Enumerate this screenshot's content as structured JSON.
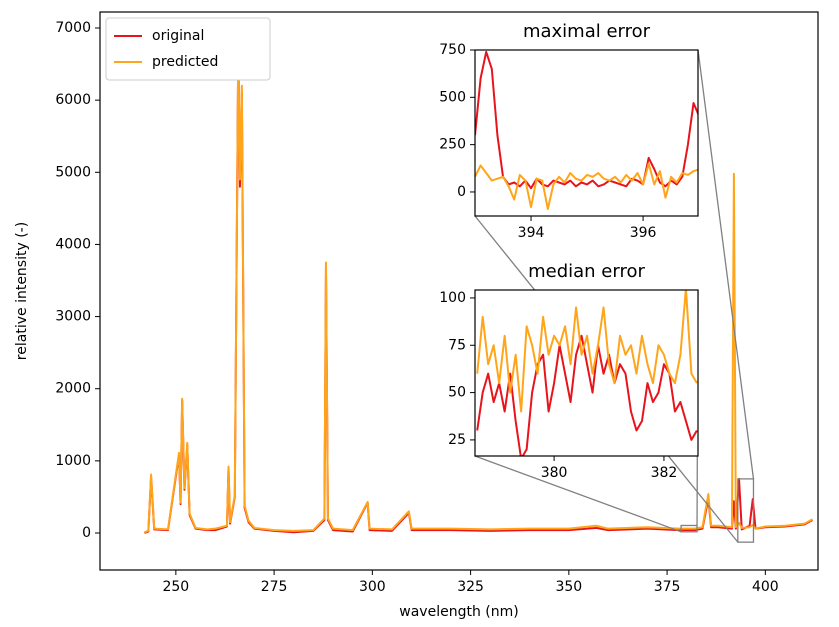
{
  "chart_data": [
    {
      "type": "line",
      "xlabel": "wavelength (nm)",
      "ylabel": "relative intensity (-)",
      "x": [
        242,
        243,
        243.7,
        244.5,
        248,
        250.8,
        251.2,
        251.6,
        252.2,
        252.9,
        253.5,
        255,
        258,
        260,
        263,
        263.4,
        263.8,
        265,
        265.9,
        266.3,
        266.8,
        267.5,
        268.5,
        270,
        275,
        280,
        285,
        287.8,
        288.2,
        288.7,
        290,
        295,
        298.8,
        299.3,
        305,
        309.3,
        310,
        320,
        330,
        340,
        350,
        357,
        360,
        370,
        378,
        382,
        384,
        385.5,
        386.2,
        388,
        391.5,
        392,
        392.5,
        393.3,
        394,
        396,
        396.8,
        397.5,
        400,
        405,
        410,
        412
      ],
      "series": [
        {
          "name": "original",
          "color": "#e8141c",
          "values": [
            0,
            20,
            780,
            50,
            40,
            1080,
            400,
            1840,
            600,
            1220,
            250,
            60,
            40,
            40,
            90,
            900,
            130,
            500,
            6850,
            4800,
            6100,
            350,
            150,
            60,
            30,
            10,
            30,
            180,
            3700,
            180,
            40,
            20,
            420,
            40,
            30,
            280,
            40,
            40,
            30,
            40,
            40,
            70,
            40,
            60,
            40,
            40,
            60,
            480,
            80,
            80,
            60,
            440,
            60,
            750,
            50,
            100,
            470,
            60,
            80,
            90,
            120,
            180
          ]
        },
        {
          "name": "predicted",
          "color": "#ffa51a",
          "values": [
            10,
            30,
            810,
            60,
            50,
            1110,
            420,
            1860,
            620,
            1250,
            270,
            70,
            50,
            60,
            100,
            920,
            150,
            520,
            6800,
            4900,
            6200,
            380,
            170,
            70,
            40,
            30,
            40,
            200,
            3750,
            200,
            60,
            40,
            430,
            60,
            50,
            300,
            60,
            60,
            50,
            60,
            60,
            100,
            60,
            80,
            60,
            60,
            80,
            540,
            100,
            100,
            80,
            4980,
            80,
            140,
            70,
            80,
            110,
            60,
            90,
            100,
            130,
            190
          ]
        }
      ],
      "xlim": [
        230.7,
        413.4
      ],
      "ylim": [
        -513,
        7222
      ],
      "xticks": [
        250,
        275,
        300,
        325,
        350,
        375,
        400
      ],
      "yticks": [
        0,
        1000,
        2000,
        3000,
        4000,
        5000,
        6000,
        7000
      ],
      "legend": "upper left"
    },
    {
      "type": "line",
      "title": "maximal error",
      "x": [
        393.0,
        393.1,
        393.2,
        393.3,
        393.4,
        393.5,
        393.6,
        393.7,
        393.8,
        393.9,
        394.0,
        394.1,
        394.2,
        394.3,
        394.4,
        394.5,
        394.6,
        394.7,
        394.8,
        394.9,
        395.0,
        395.1,
        395.2,
        395.3,
        395.4,
        395.5,
        395.6,
        395.7,
        395.8,
        395.9,
        396.0,
        396.1,
        396.2,
        396.3,
        396.4,
        396.5,
        396.6,
        396.7,
        396.8,
        396.9,
        397.0
      ],
      "series": [
        {
          "color": "#e8141c",
          "values": [
            300,
            600,
            740,
            650,
            300,
            80,
            40,
            50,
            30,
            60,
            20,
            70,
            40,
            30,
            60,
            50,
            40,
            60,
            30,
            50,
            40,
            60,
            30,
            40,
            60,
            50,
            40,
            30,
            70,
            60,
            40,
            180,
            120,
            50,
            30,
            60,
            40,
            80,
            250,
            470,
            400
          ]
        },
        {
          "color": "#ffa51a",
          "values": [
            80,
            140,
            100,
            60,
            70,
            80,
            30,
            -40,
            90,
            60,
            -80,
            70,
            60,
            -90,
            40,
            80,
            50,
            100,
            70,
            60,
            90,
            80,
            100,
            70,
            60,
            80,
            50,
            90,
            60,
            100,
            40,
            150,
            40,
            110,
            -30,
            80,
            50,
            100,
            90,
            110,
            120
          ]
        }
      ],
      "xlim": [
        393.0,
        396.98
      ],
      "ylim": [
        -127,
        750
      ],
      "xticks": [
        394,
        396
      ],
      "yticks": [
        0,
        250,
        500,
        750
      ]
    },
    {
      "type": "line",
      "title": "median error",
      "x": [
        378.6,
        378.7,
        378.8,
        378.9,
        379.0,
        379.1,
        379.2,
        379.3,
        379.4,
        379.5,
        379.6,
        379.7,
        379.8,
        379.9,
        380.0,
        380.1,
        380.2,
        380.3,
        380.4,
        380.5,
        380.6,
        380.7,
        380.8,
        380.9,
        381.0,
        381.1,
        381.2,
        381.3,
        381.4,
        381.5,
        381.6,
        381.7,
        381.8,
        381.9,
        382.0,
        382.1,
        382.2,
        382.3,
        382.4,
        382.5,
        382.6
      ],
      "series": [
        {
          "color": "#e8141c",
          "values": [
            30,
            50,
            60,
            45,
            55,
            40,
            60,
            35,
            15,
            20,
            50,
            65,
            70,
            40,
            55,
            75,
            60,
            45,
            70,
            80,
            65,
            50,
            75,
            60,
            70,
            55,
            65,
            60,
            40,
            30,
            35,
            55,
            45,
            50,
            65,
            60,
            40,
            45,
            35,
            25,
            30
          ]
        },
        {
          "color": "#ffa51a",
          "values": [
            60,
            90,
            65,
            75,
            55,
            80,
            50,
            70,
            40,
            85,
            75,
            60,
            90,
            70,
            80,
            75,
            85,
            65,
            95,
            70,
            80,
            60,
            75,
            95,
            65,
            55,
            80,
            70,
            75,
            60,
            80,
            65,
            55,
            75,
            70,
            60,
            55,
            70,
            105,
            60,
            55
          ]
        }
      ],
      "xlim": [
        378.56,
        382.62
      ],
      "ylim": [
        16.5,
        104.2
      ],
      "xticks": [
        380,
        382
      ],
      "yticks": [
        25,
        50,
        75,
        100
      ]
    }
  ]
}
